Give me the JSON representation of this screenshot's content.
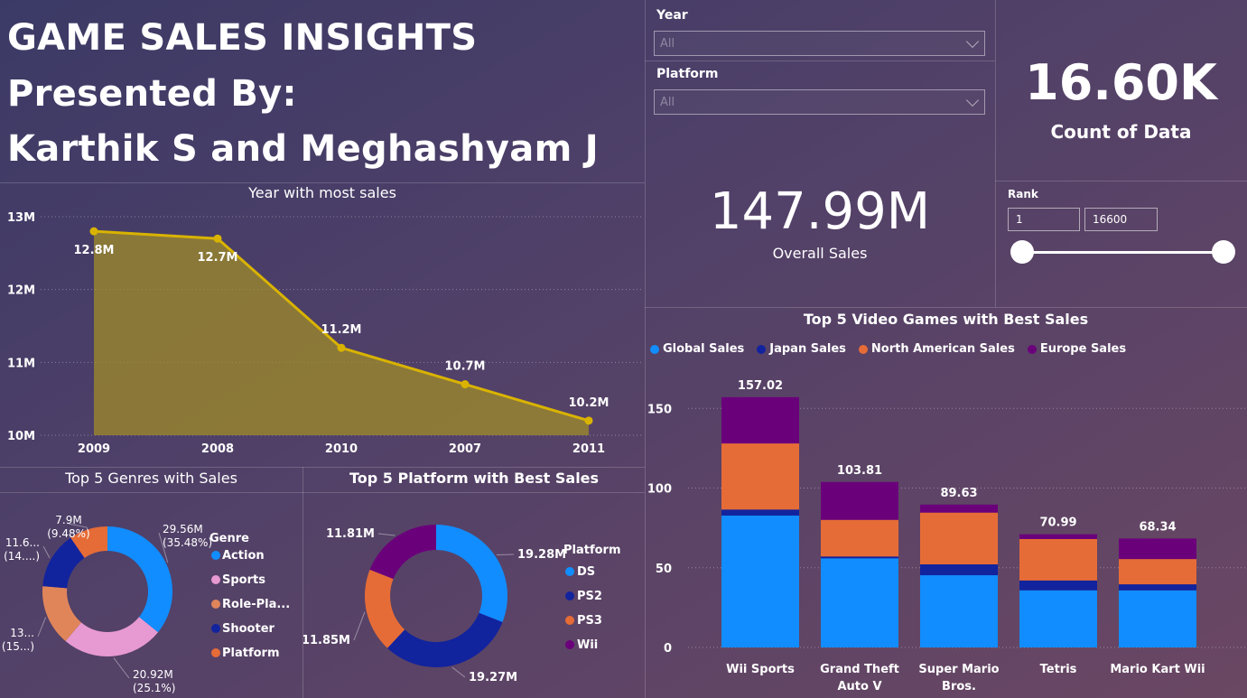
{
  "header": {
    "title": "GAME SALES INSIGHTS",
    "presented": "Presented By:",
    "authors": "Karthik S and Meghashyam J"
  },
  "filters": {
    "year": {
      "label": "Year",
      "value": "All"
    },
    "platform": {
      "label": "Platform",
      "value": "All"
    }
  },
  "kpis": {
    "count": {
      "value": "16.60K",
      "label": "Count of Data"
    },
    "sales": {
      "value": "147.99M",
      "label": "Overall Sales"
    }
  },
  "rank": {
    "label": "Rank",
    "min": "1",
    "max": "16600"
  },
  "colors": {
    "global": "#118dff",
    "japan": "#12239e",
    "na": "#e66c37",
    "eu": "#6b007b",
    "sports": "#e799d1",
    "roleplay": "#e0855a",
    "line": "#d9b300"
  },
  "chart_data": [
    {
      "type": "area",
      "title": "Year with most sales",
      "categories": [
        "2009",
        "2008",
        "2010",
        "2007",
        "2011"
      ],
      "values": [
        12.8,
        12.7,
        11.2,
        10.7,
        10.2
      ],
      "labels": [
        "12.8M",
        "12.7M",
        "11.2M",
        "10.7M",
        "10.2M"
      ],
      "yticks": [
        "10M",
        "11M",
        "12M",
        "13M"
      ],
      "ylim": [
        10,
        13
      ]
    },
    {
      "type": "pie",
      "title": "Top 5 Genres with Sales",
      "legend_title": "Genre",
      "categories": [
        "Action",
        "Sports",
        "Role-Pla...",
        "Shooter",
        "Platform"
      ],
      "values": [
        35.48,
        25.1,
        15.0,
        14.0,
        9.48
      ],
      "labels": [
        [
          "29.56M",
          "(35.48%)"
        ],
        [
          "20.92M",
          "(25.1%)"
        ],
        [
          "13...",
          "(15...)"
        ],
        [
          "11.6...",
          "(14....)"
        ],
        [
          "7.9M",
          "(9.48%)"
        ]
      ],
      "colors": [
        "#118dff",
        "#e799d1",
        "#e0855a",
        "#12239e",
        "#e66c37"
      ]
    },
    {
      "type": "pie",
      "title": "Top 5 Platform with Best Sales",
      "legend_title": "Platform",
      "categories": [
        "DS",
        "PS2",
        "PS3",
        "Wii"
      ],
      "values": [
        19.28,
        19.27,
        11.85,
        11.81
      ],
      "labels": [
        "19.28M",
        "19.27M",
        "11.85M",
        "11.81M"
      ],
      "colors": [
        "#118dff",
        "#12239e",
        "#e66c37",
        "#6b007b"
      ]
    },
    {
      "type": "bar",
      "title": "Top 5 Video Games with Best Sales",
      "categories": [
        "Wii Sports",
        "Grand Theft Auto V",
        "Super Mario Bros.",
        "Tetris",
        "Mario Kart Wii"
      ],
      "category_lines": [
        [
          "Wii Sports"
        ],
        [
          "Grand Theft",
          "Auto V"
        ],
        [
          "Super Mario",
          "Bros."
        ],
        [
          "Tetris"
        ],
        [
          "Mario Kart Wii"
        ]
      ],
      "series": [
        {
          "name": "Global Sales",
          "values": [
            82.74,
            55.92,
            45.31,
            35.84,
            35.82
          ]
        },
        {
          "name": "Japan Sales",
          "values": [
            3.77,
            1.13,
            6.81,
            6.16,
            3.79
          ]
        },
        {
          "name": "North American Sales",
          "values": [
            41.49,
            23.0,
            32.48,
            26.0,
            15.85
          ]
        },
        {
          "name": "Europe Sales",
          "values": [
            29.02,
            23.76,
            5.03,
            3.0,
            12.88
          ]
        }
      ],
      "totals": [
        "157.02",
        "103.81",
        "89.63",
        "70.99",
        "68.34"
      ],
      "yticks": [
        "0",
        "50",
        "100",
        "150"
      ],
      "ylim": [
        0,
        160
      ]
    }
  ]
}
